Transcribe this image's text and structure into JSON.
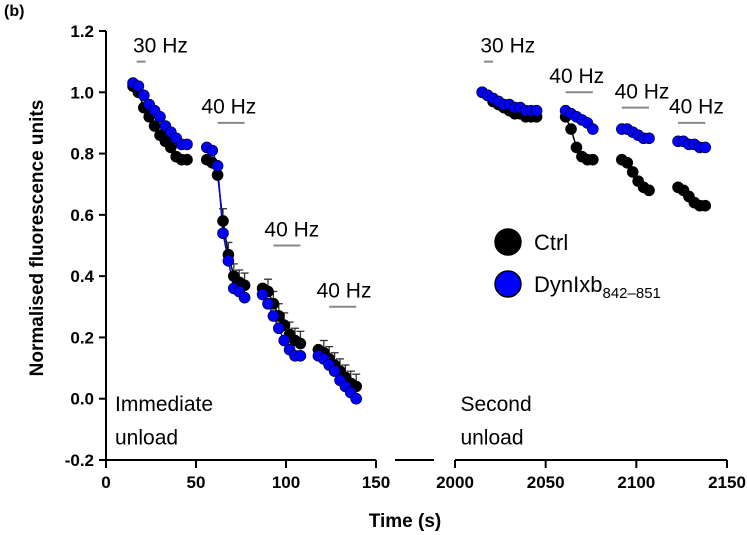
{
  "panel_label": "(b)",
  "chart_data": {
    "type": "scatter",
    "xlabel": "Time (s)",
    "ylabel": "Normalised fluorescence units",
    "ylim": [
      -0.2,
      1.2
    ],
    "y_ticks": [
      "-0.2",
      "0.0",
      "0.2",
      "0.4",
      "0.6",
      "0.8",
      "1.0",
      "1.2"
    ],
    "x_segments": [
      {
        "range": [
          0,
          150
        ],
        "ticks": [
          "0",
          "50",
          "100",
          "150"
        ]
      },
      {
        "range": [
          2000,
          2150
        ],
        "ticks": [
          "2000",
          "2050",
          "2100",
          "2150"
        ]
      }
    ],
    "axis_break": true,
    "legend": {
      "position": "right",
      "entries": [
        {
          "label": "Ctrl",
          "color": "#000000"
        },
        {
          "label": "DynIxb",
          "subscript": "842–851",
          "color": "#0000FF"
        }
      ]
    },
    "annotations": [
      {
        "text": "Immediate",
        "x": 5,
        "y": -0.04
      },
      {
        "text": "unload",
        "x": 5,
        "y": -0.15
      },
      {
        "text": "Second",
        "x": 2003,
        "y": -0.04
      },
      {
        "text": "unload",
        "x": 2003,
        "y": -0.15
      }
    ],
    "stimuli": [
      {
        "label": "30 Hz",
        "x_start": 17,
        "x_end": 22,
        "bar_y": 1.1,
        "label_x": 15,
        "label_y": 1.13
      },
      {
        "label": "40 Hz",
        "x_start": 62,
        "x_end": 77,
        "bar_y": 0.9,
        "label_x": 53,
        "label_y": 0.93
      },
      {
        "label": "40 Hz",
        "x_start": 93,
        "x_end": 108,
        "bar_y": 0.5,
        "label_x": 88,
        "label_y": 0.53
      },
      {
        "label": "40 Hz",
        "x_start": 124,
        "x_end": 139,
        "bar_y": 0.3,
        "label_x": 117,
        "label_y": 0.33
      },
      {
        "label": "30 Hz",
        "x_start": 2016,
        "x_end": 2021,
        "bar_y": 1.1,
        "label_x": 2014,
        "label_y": 1.13
      },
      {
        "label": "40 Hz",
        "x_start": 2061,
        "x_end": 2076,
        "bar_y": 1.0,
        "label_x": 2052,
        "label_y": 1.03
      },
      {
        "label": "40 Hz",
        "x_start": 2092,
        "x_end": 2107,
        "bar_y": 0.95,
        "label_x": 2088,
        "label_y": 0.98
      },
      {
        "label": "40 Hz",
        "x_start": 2123,
        "x_end": 2138,
        "bar_y": 0.9,
        "label_x": 2118,
        "label_y": 0.93
      }
    ],
    "series": [
      {
        "name": "Ctrl",
        "color": "#000000",
        "segments": [
          {
            "x": [
              15,
              18,
              21,
              24,
              27,
              30,
              33,
              36,
              39,
              42,
              45
            ],
            "y": [
              1.02,
              1.0,
              0.95,
              0.92,
              0.89,
              0.86,
              0.84,
              0.82,
              0.79,
              0.78,
              0.78
            ]
          },
          {
            "x": [
              56,
              59,
              62,
              65,
              68,
              71,
              74,
              77
            ],
            "y": [
              0.78,
              0.77,
              0.73,
              0.58,
              0.47,
              0.4,
              0.38,
              0.37
            ]
          },
          {
            "x": [
              87,
              90,
              93,
              96,
              99,
              102,
              105,
              108
            ],
            "y": [
              0.36,
              0.35,
              0.31,
              0.27,
              0.24,
              0.21,
              0.19,
              0.18
            ]
          },
          {
            "x": [
              118,
              121,
              124,
              127,
              130,
              133,
              136,
              139
            ],
            "y": [
              0.16,
              0.15,
              0.13,
              0.11,
              0.09,
              0.07,
              0.05,
              0.04
            ]
          },
          {
            "x": [
              2015,
              2018,
              2021,
              2024,
              2027,
              2030,
              2033,
              2036,
              2039,
              2042,
              2045
            ],
            "y": [
              1.0,
              0.99,
              0.97,
              0.96,
              0.95,
              0.94,
              0.93,
              0.93,
              0.92,
              0.92,
              0.92
            ]
          },
          {
            "x": [
              2061,
              2064,
              2067,
              2070,
              2073,
              2076
            ],
            "y": [
              0.92,
              0.88,
              0.82,
              0.79,
              0.78,
              0.78
            ]
          },
          {
            "x": [
              2092,
              2095,
              2098,
              2101,
              2104,
              2107
            ],
            "y": [
              0.78,
              0.77,
              0.74,
              0.71,
              0.69,
              0.68
            ]
          },
          {
            "x": [
              2123,
              2126,
              2129,
              2132,
              2135,
              2138
            ],
            "y": [
              0.69,
              0.68,
              0.66,
              0.64,
              0.63,
              0.63
            ]
          }
        ]
      },
      {
        "name": "DynIxb842–851",
        "color": "#0000FF",
        "segments": [
          {
            "x": [
              15,
              18,
              21,
              24,
              27,
              30,
              33,
              36,
              39,
              42,
              45
            ],
            "y": [
              1.03,
              1.02,
              0.99,
              0.96,
              0.94,
              0.92,
              0.89,
              0.87,
              0.85,
              0.83,
              0.83
            ]
          },
          {
            "x": [
              56,
              59,
              62,
              65,
              68,
              71,
              74,
              77
            ],
            "y": [
              0.82,
              0.81,
              0.76,
              0.54,
              0.45,
              0.36,
              0.35,
              0.33
            ]
          },
          {
            "x": [
              87,
              90,
              93,
              96,
              99,
              102,
              105,
              108
            ],
            "y": [
              0.34,
              0.31,
              0.27,
              0.23,
              0.19,
              0.16,
              0.14,
              0.14
            ]
          },
          {
            "x": [
              118,
              121,
              124,
              127,
              130,
              133,
              136,
              139
            ],
            "y": [
              0.14,
              0.13,
              0.11,
              0.09,
              0.06,
              0.04,
              0.02,
              0.0
            ]
          },
          {
            "x": [
              2015,
              2018,
              2021,
              2024,
              2027,
              2030,
              2033,
              2036,
              2039,
              2042,
              2045
            ],
            "y": [
              1.0,
              0.99,
              0.98,
              0.97,
              0.96,
              0.96,
              0.95,
              0.95,
              0.94,
              0.94,
              0.94
            ]
          },
          {
            "x": [
              2061,
              2064,
              2067,
              2070,
              2073,
              2076
            ],
            "y": [
              0.94,
              0.93,
              0.92,
              0.91,
              0.9,
              0.88
            ]
          },
          {
            "x": [
              2092,
              2095,
              2098,
              2101,
              2104,
              2107
            ],
            "y": [
              0.88,
              0.88,
              0.87,
              0.86,
              0.85,
              0.85
            ]
          },
          {
            "x": [
              2123,
              2126,
              2129,
              2132,
              2135,
              2138
            ],
            "y": [
              0.84,
              0.84,
              0.83,
              0.83,
              0.82,
              0.82
            ]
          }
        ]
      }
    ]
  }
}
